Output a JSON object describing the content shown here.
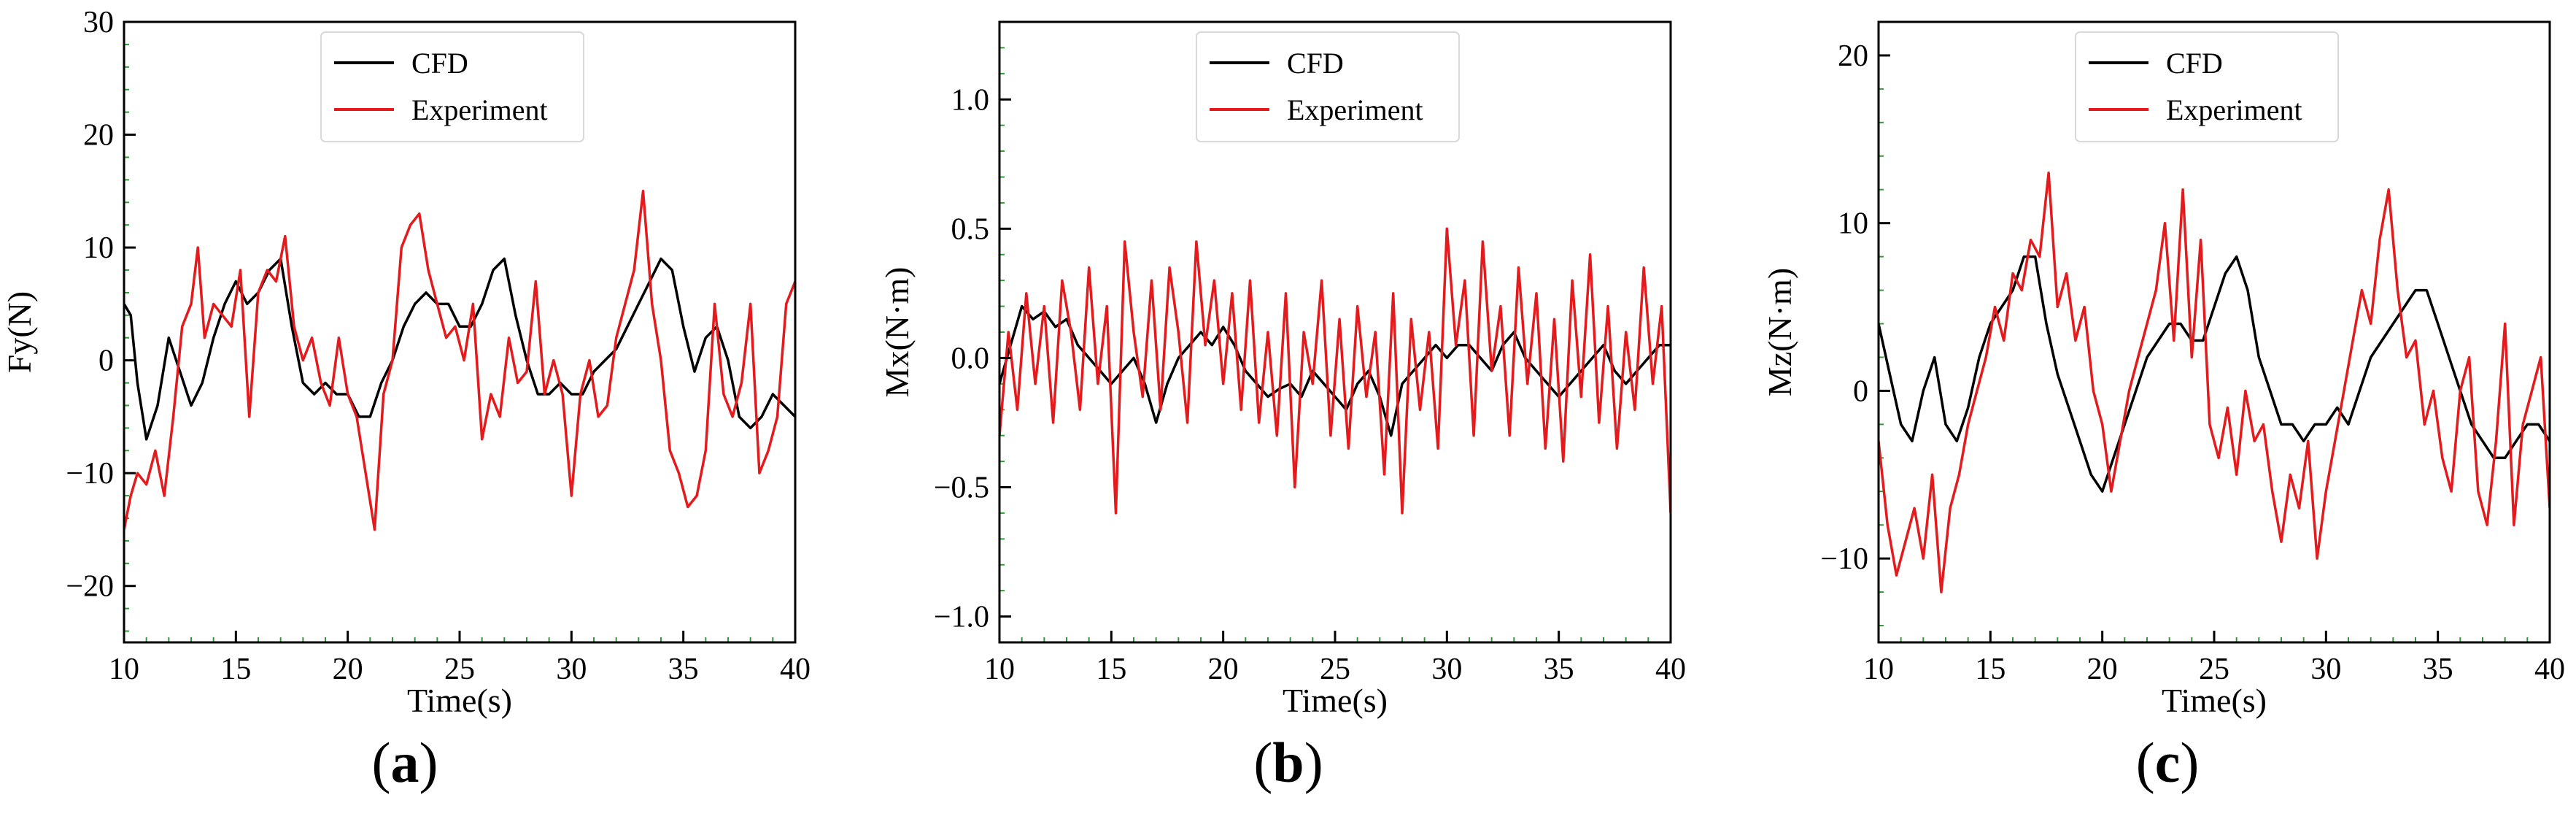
{
  "colors": {
    "cfd": "#000000",
    "experiment": "#e41a1c",
    "tick_minor": "#2ca02c",
    "axis": "#000000"
  },
  "chart_data": [
    {
      "type": "line",
      "panel": "(a)",
      "panel_letter": "a",
      "xlabel": "Time(s)",
      "ylabel": "Fy(N)",
      "xlim": [
        10,
        40
      ],
      "ylim": [
        -25,
        30
      ],
      "xticks": [
        10,
        15,
        20,
        25,
        30,
        35,
        40
      ],
      "yticks": [
        -20,
        -10,
        0,
        10,
        20,
        30
      ],
      "legend": {
        "position": "top-center",
        "entries": [
          "CFD",
          "Experiment"
        ]
      },
      "series": [
        {
          "name": "CFD",
          "x": [
            10.0,
            10.3,
            10.6,
            11.0,
            11.5,
            12.0,
            12.5,
            13.0,
            13.5,
            14.0,
            14.5,
            15.0,
            15.5,
            16.0,
            16.5,
            17.0,
            17.5,
            18.0,
            18.5,
            19.0,
            19.5,
            20.0,
            20.5,
            21.0,
            21.5,
            22.0,
            22.5,
            23.0,
            23.5,
            24.0,
            24.5,
            25.0,
            25.5,
            26.0,
            26.5,
            27.0,
            27.5,
            28.0,
            28.5,
            29.0,
            29.5,
            30.0,
            30.5,
            31.0,
            31.5,
            32.0,
            32.5,
            33.0,
            33.5,
            34.0,
            34.5,
            35.0,
            35.5,
            36.0,
            36.5,
            37.0,
            37.5,
            38.0,
            38.5,
            39.0,
            39.5,
            40.0
          ],
          "values": [
            5,
            4,
            -2,
            -7,
            -4,
            2,
            -1,
            -4,
            -2,
            2,
            5,
            7,
            5,
            6,
            8,
            9,
            3,
            -2,
            -3,
            -2,
            -3,
            -3,
            -5,
            -5,
            -2,
            0,
            3,
            5,
            6,
            5,
            5,
            3,
            3,
            5,
            8,
            9,
            4,
            0,
            -3,
            -3,
            -2,
            -3,
            -3,
            -1,
            0,
            1,
            3,
            5,
            7,
            9,
            8,
            3,
            -1,
            2,
            3,
            0,
            -5,
            -6,
            -5,
            -3,
            -4,
            -5
          ]
        },
        {
          "name": "Experiment",
          "x": [
            10.0,
            10.3,
            10.6,
            11.0,
            11.4,
            11.8,
            12.2,
            12.6,
            13.0,
            13.3,
            13.6,
            14.0,
            14.4,
            14.8,
            15.2,
            15.6,
            16.0,
            16.4,
            16.8,
            17.2,
            17.6,
            18.0,
            18.4,
            18.8,
            19.2,
            19.6,
            20.0,
            20.4,
            20.8,
            21.2,
            21.6,
            22.0,
            22.4,
            22.8,
            23.2,
            23.6,
            24.0,
            24.4,
            24.8,
            25.2,
            25.6,
            26.0,
            26.4,
            26.8,
            27.2,
            27.6,
            28.0,
            28.4,
            28.8,
            29.2,
            29.6,
            30.0,
            30.4,
            30.8,
            31.2,
            31.6,
            32.0,
            32.4,
            32.8,
            33.2,
            33.6,
            34.0,
            34.4,
            34.8,
            35.2,
            35.6,
            36.0,
            36.4,
            36.8,
            37.2,
            37.6,
            38.0,
            38.4,
            38.8,
            39.2,
            39.6,
            40.0
          ],
          "values": [
            -15,
            -12,
            -10,
            -11,
            -8,
            -12,
            -5,
            3,
            5,
            10,
            2,
            5,
            4,
            3,
            8,
            -5,
            6,
            8,
            7,
            11,
            3,
            0,
            2,
            -2,
            -4,
            2,
            -3,
            -5,
            -10,
            -15,
            -3,
            0,
            10,
            12,
            13,
            8,
            5,
            2,
            3,
            0,
            5,
            -7,
            -3,
            -5,
            2,
            -2,
            -1,
            7,
            -3,
            0,
            -3,
            -12,
            -3,
            0,
            -5,
            -4,
            2,
            5,
            8,
            15,
            5,
            0,
            -8,
            -10,
            -13,
            -12,
            -8,
            5,
            -3,
            -5,
            -2,
            5,
            -10,
            -8,
            -5,
            5,
            7
          ]
        }
      ]
    },
    {
      "type": "line",
      "panel": "(b)",
      "panel_letter": "b",
      "xlabel": "Time(s)",
      "ylabel": "Mx(N·m)",
      "xlim": [
        10,
        40
      ],
      "ylim": [
        -1.1,
        1.3
      ],
      "xticks": [
        10,
        15,
        20,
        25,
        30,
        35,
        40
      ],
      "yticks": [
        -1.0,
        -0.5,
        0.0,
        0.5,
        1.0
      ],
      "legend": {
        "position": "top-center",
        "entries": [
          "CFD",
          "Experiment"
        ]
      },
      "series": [
        {
          "name": "CFD",
          "x": [
            10.0,
            10.5,
            11.0,
            11.5,
            12.0,
            12.5,
            13.0,
            13.5,
            14.0,
            14.5,
            15.0,
            15.5,
            16.0,
            16.5,
            17.0,
            17.5,
            18.0,
            18.5,
            19.0,
            19.5,
            20.0,
            20.5,
            21.0,
            21.5,
            22.0,
            22.5,
            23.0,
            23.5,
            24.0,
            24.5,
            25.0,
            25.5,
            26.0,
            26.5,
            27.0,
            27.5,
            28.0,
            28.5,
            29.0,
            29.5,
            30.0,
            30.5,
            31.0,
            31.5,
            32.0,
            32.5,
            33.0,
            33.5,
            34.0,
            34.5,
            35.0,
            35.5,
            36.0,
            36.5,
            37.0,
            37.5,
            38.0,
            38.5,
            39.0,
            39.5,
            40.0
          ],
          "values": [
            -0.1,
            0.05,
            0.2,
            0.15,
            0.18,
            0.12,
            0.15,
            0.05,
            0.0,
            -0.05,
            -0.1,
            -0.05,
            0.0,
            -0.1,
            -0.25,
            -0.1,
            0.0,
            0.05,
            0.1,
            0.05,
            0.12,
            0.05,
            -0.05,
            -0.1,
            -0.15,
            -0.12,
            -0.1,
            -0.15,
            -0.05,
            -0.1,
            -0.15,
            -0.2,
            -0.1,
            -0.05,
            -0.15,
            -0.3,
            -0.1,
            -0.05,
            0.0,
            0.05,
            0.0,
            0.05,
            0.05,
            0.0,
            -0.05,
            0.05,
            0.1,
            0.0,
            -0.05,
            -0.1,
            -0.15,
            -0.1,
            -0.05,
            0.0,
            0.05,
            -0.05,
            -0.1,
            -0.05,
            0.0,
            0.05,
            0.05
          ]
        },
        {
          "name": "Experiment",
          "x": [
            10.0,
            10.4,
            10.8,
            11.2,
            11.6,
            12.0,
            12.4,
            12.8,
            13.2,
            13.6,
            14.0,
            14.4,
            14.8,
            15.2,
            15.6,
            16.0,
            16.4,
            16.8,
            17.2,
            17.6,
            18.0,
            18.4,
            18.8,
            19.2,
            19.6,
            20.0,
            20.4,
            20.8,
            21.2,
            21.6,
            22.0,
            22.4,
            22.8,
            23.2,
            23.6,
            24.0,
            24.4,
            24.8,
            25.2,
            25.6,
            26.0,
            26.4,
            26.8,
            27.2,
            27.6,
            28.0,
            28.4,
            28.8,
            29.2,
            29.6,
            30.0,
            30.4,
            30.8,
            31.2,
            31.6,
            32.0,
            32.4,
            32.8,
            33.2,
            33.6,
            34.0,
            34.4,
            34.8,
            35.2,
            35.6,
            36.0,
            36.4,
            36.8,
            37.2,
            37.6,
            38.0,
            38.4,
            38.8,
            39.2,
            39.6,
            40.0
          ],
          "values": [
            -0.3,
            0.1,
            -0.2,
            0.25,
            -0.1,
            0.2,
            -0.25,
            0.3,
            0.1,
            -0.2,
            0.35,
            -0.1,
            0.2,
            -0.6,
            0.45,
            0.1,
            -0.15,
            0.3,
            -0.2,
            0.35,
            0.1,
            -0.25,
            0.45,
            0.05,
            0.3,
            -0.1,
            0.25,
            -0.2,
            0.3,
            -0.25,
            0.1,
            -0.3,
            0.25,
            -0.5,
            0.1,
            -0.1,
            0.3,
            -0.3,
            0.15,
            -0.35,
            0.2,
            -0.15,
            0.1,
            -0.45,
            0.25,
            -0.6,
            0.15,
            -0.2,
            0.1,
            -0.35,
            0.5,
            0.05,
            0.3,
            -0.3,
            0.45,
            -0.05,
            0.2,
            -0.3,
            0.35,
            -0.1,
            0.25,
            -0.35,
            0.15,
            -0.4,
            0.3,
            -0.15,
            0.4,
            -0.25,
            0.2,
            -0.35,
            0.1,
            -0.2,
            0.35,
            -0.1,
            0.2,
            -0.6
          ]
        }
      ]
    },
    {
      "type": "line",
      "panel": "(c)",
      "panel_letter": "c",
      "xlabel": "Time(s)",
      "ylabel": "Mz(N·m)",
      "xlim": [
        10,
        40
      ],
      "ylim": [
        -15,
        22
      ],
      "xticks": [
        10,
        15,
        20,
        25,
        30,
        35,
        40
      ],
      "yticks": [
        -10,
        0,
        10,
        20
      ],
      "legend": {
        "position": "top-center",
        "entries": [
          "CFD",
          "Experiment"
        ]
      },
      "series": [
        {
          "name": "CFD",
          "x": [
            10.0,
            10.5,
            11.0,
            11.5,
            12.0,
            12.5,
            13.0,
            13.5,
            14.0,
            14.5,
            15.0,
            15.5,
            16.0,
            16.5,
            17.0,
            17.5,
            18.0,
            18.5,
            19.0,
            19.5,
            20.0,
            20.5,
            21.0,
            21.5,
            22.0,
            22.5,
            23.0,
            23.5,
            24.0,
            24.5,
            25.0,
            25.5,
            26.0,
            26.5,
            27.0,
            27.5,
            28.0,
            28.5,
            29.0,
            29.5,
            30.0,
            30.5,
            31.0,
            31.5,
            32.0,
            32.5,
            33.0,
            33.5,
            34.0,
            34.5,
            35.0,
            35.5,
            36.0,
            36.5,
            37.0,
            37.5,
            38.0,
            38.5,
            39.0,
            39.5,
            40.0
          ],
          "values": [
            4,
            1,
            -2,
            -3,
            0,
            2,
            -2,
            -3,
            -1,
            2,
            4,
            5,
            6,
            8,
            8,
            4,
            1,
            -1,
            -3,
            -5,
            -6,
            -4,
            -2,
            0,
            2,
            3,
            4,
            4,
            3,
            3,
            5,
            7,
            8,
            6,
            2,
            0,
            -2,
            -2,
            -3,
            -2,
            -2,
            -1,
            -2,
            0,
            2,
            3,
            4,
            5,
            6,
            6,
            4,
            2,
            0,
            -2,
            -3,
            -4,
            -4,
            -3,
            -2,
            -2,
            -3
          ]
        },
        {
          "name": "Experiment",
          "x": [
            10.0,
            10.4,
            10.8,
            11.2,
            11.6,
            12.0,
            12.4,
            12.8,
            13.2,
            13.6,
            14.0,
            14.4,
            14.8,
            15.2,
            15.6,
            16.0,
            16.4,
            16.8,
            17.2,
            17.6,
            18.0,
            18.4,
            18.8,
            19.2,
            19.6,
            20.0,
            20.4,
            20.8,
            21.2,
            21.6,
            22.0,
            22.4,
            22.8,
            23.2,
            23.6,
            24.0,
            24.4,
            24.8,
            25.2,
            25.6,
            26.0,
            26.4,
            26.8,
            27.2,
            27.6,
            28.0,
            28.4,
            28.8,
            29.2,
            29.6,
            30.0,
            30.4,
            30.8,
            31.2,
            31.6,
            32.0,
            32.4,
            32.8,
            33.2,
            33.6,
            34.0,
            34.4,
            34.8,
            35.2,
            35.6,
            36.0,
            36.4,
            36.8,
            37.2,
            37.6,
            38.0,
            38.4,
            38.8,
            39.2,
            39.6,
            40.0
          ],
          "values": [
            -3,
            -8,
            -11,
            -9,
            -7,
            -10,
            -5,
            -12,
            -7,
            -5,
            -2,
            0,
            2,
            5,
            3,
            7,
            6,
            9,
            8,
            13,
            5,
            7,
            3,
            5,
            0,
            -2,
            -6,
            -3,
            0,
            2,
            4,
            6,
            10,
            3,
            12,
            2,
            9,
            -2,
            -4,
            -1,
            -5,
            0,
            -3,
            -2,
            -6,
            -9,
            -5,
            -7,
            -3,
            -10,
            -6,
            -3,
            0,
            3,
            6,
            4,
            9,
            12,
            6,
            2,
            3,
            -2,
            0,
            -4,
            -6,
            0,
            2,
            -6,
            -8,
            -3,
            4,
            -8,
            -2,
            0,
            2,
            -7
          ]
        }
      ]
    }
  ]
}
